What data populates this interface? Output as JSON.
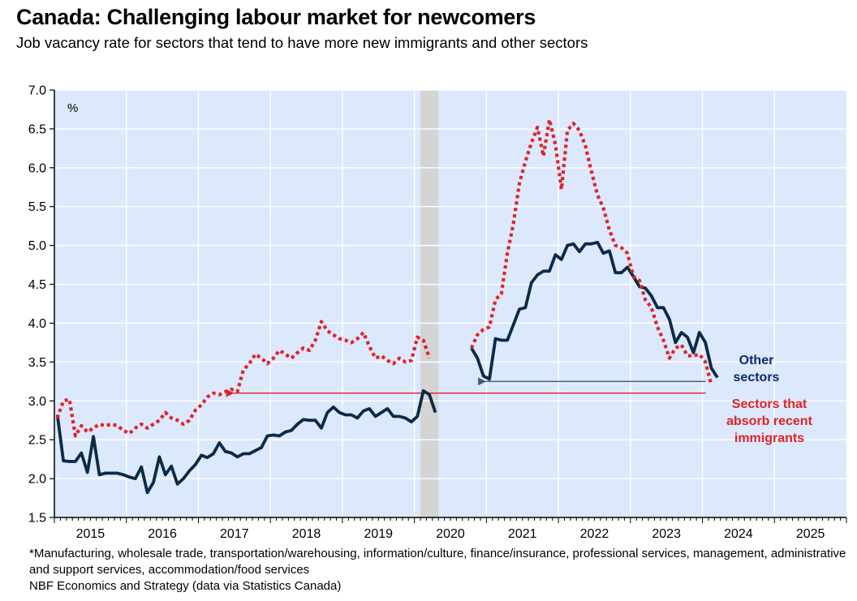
{
  "title": "Canada: Challenging labour market for newcomers",
  "subtitle": "Job vacancy rate for sectors that tend to have more new immigrants and other sectors",
  "footnote_sectors": "*Manufacturing, wholesale trade, transportation/warehousing, information/culture, finance/insurance, professional services, management, administrative and support services, accommodation/food services",
  "source": "NBF Economics and Strategy (data via Statistics Canada)",
  "colors": {
    "plot_background": "#dce8fb",
    "other_sectors": "#0b2a47",
    "immigrant_sectors": "#e02228",
    "recession": "#d4d4d4",
    "annotation_other": "#0b2a6e",
    "annotation_immigrant": "#e02228"
  },
  "chart_data": {
    "type": "line",
    "unit_label": "%",
    "xlim": [
      "2015-01",
      "2025-12"
    ],
    "ylim": [
      1.5,
      7.0
    ],
    "yticks": [
      1.5,
      2.0,
      2.5,
      3.0,
      3.5,
      4.0,
      4.5,
      5.0,
      5.5,
      6.0,
      6.5,
      7.0
    ],
    "ytick_labels": [
      "1.5",
      "2.0",
      "2.5",
      "3.0",
      "3.5",
      "4.0",
      "4.5",
      "5.0",
      "5.5",
      "6.0",
      "6.5",
      "7.0"
    ],
    "xtick_labels": [
      "2015",
      "2016",
      "2017",
      "2018",
      "2019",
      "2020",
      "2021",
      "2022",
      "2023",
      "2024",
      "2025"
    ],
    "grid": true,
    "shaded_period": {
      "start": "2020-02",
      "end": "2020-04",
      "label": ""
    },
    "series": [
      {
        "name": "Other sectors",
        "line_style": "solid",
        "segments": [
          {
            "start": "2015-01",
            "values": [
              2.82,
              2.23,
              2.22,
              2.22,
              2.33,
              2.08,
              2.54,
              2.05,
              2.07,
              2.07,
              2.07,
              2.05,
              2.02,
              2.0,
              2.15,
              1.82,
              1.95,
              2.28,
              2.05,
              2.16,
              1.93,
              2.0,
              2.1,
              2.18,
              2.3,
              2.27,
              2.32,
              2.46,
              2.35,
              2.33,
              2.28,
              2.32,
              2.32,
              2.36,
              2.4,
              2.55,
              2.56,
              2.55,
              2.6,
              2.62,
              2.7,
              2.76,
              2.75,
              2.75,
              2.65,
              2.85,
              2.92,
              2.85,
              2.82,
              2.82,
              2.78,
              2.87,
              2.9,
              2.8,
              2.85,
              2.9,
              2.8,
              2.8,
              2.78,
              2.73,
              2.8,
              3.13,
              3.08,
              2.85
            ]
          },
          {
            "start": "2020-10",
            "values": [
              3.68,
              3.55,
              3.32,
              3.28,
              3.8,
              3.78,
              3.78,
              3.98,
              4.18,
              4.2,
              4.52,
              4.62,
              4.67,
              4.67,
              4.88,
              4.82,
              5.0,
              5.02,
              4.92,
              5.02,
              5.02,
              5.04,
              4.9,
              4.93,
              4.65,
              4.65,
              4.72,
              4.6,
              4.47,
              4.45,
              4.35,
              4.2,
              4.2,
              4.05,
              3.75,
              3.88,
              3.82,
              3.62,
              3.88,
              3.75,
              3.42,
              3.3
            ]
          }
        ]
      },
      {
        "name": "Sectors that absorb recent immigrants",
        "line_style": "dotted",
        "segments": [
          {
            "start": "2015-01",
            "values": [
              2.78,
              3.0,
              3.02,
              2.55,
              2.68,
              2.6,
              2.65,
              2.7,
              2.68,
              2.7,
              2.68,
              2.62,
              2.58,
              2.65,
              2.7,
              2.65,
              2.7,
              2.75,
              2.85,
              2.78,
              2.75,
              2.7,
              2.75,
              2.88,
              2.95,
              3.05,
              3.1,
              3.08,
              3.12,
              3.15,
              3.12,
              3.4,
              3.48,
              3.6,
              3.55,
              3.48,
              3.55,
              3.65,
              3.6,
              3.55,
              3.62,
              3.68,
              3.65,
              3.78,
              4.02,
              3.9,
              3.85,
              3.8,
              3.78,
              3.75,
              3.8,
              3.88,
              3.7,
              3.55,
              3.58,
              3.52,
              3.48,
              3.55,
              3.5,
              3.52,
              3.82,
              3.78,
              3.55
            ]
          },
          {
            "start": "2020-10",
            "values": [
              3.68,
              3.85,
              3.92,
              3.95,
              4.3,
              4.38,
              4.9,
              5.28,
              5.8,
              6.08,
              6.32,
              6.52,
              6.15,
              6.62,
              6.3,
              5.72,
              6.48,
              6.57,
              6.48,
              6.28,
              5.95,
              5.65,
              5.48,
              5.2,
              5.0,
              4.97,
              4.9,
              4.6,
              4.55,
              4.3,
              4.2,
              3.95,
              3.78,
              3.55,
              3.68,
              3.72,
              3.58,
              3.58,
              3.6,
              3.5,
              3.2
            ]
          }
        ]
      }
    ],
    "reference_lines": [
      {
        "series": "Other sectors",
        "value": 3.25,
        "from": "2020-12",
        "to": "2024-01"
      },
      {
        "series": "Sectors that absorb recent immigrants",
        "value": 3.1,
        "from": "2017-06",
        "to": "2024-01"
      }
    ],
    "annotations": [
      {
        "series": "Other sectors",
        "lines": [
          "Other",
          "sectors"
        ]
      },
      {
        "series": "Sectors that absorb recent immigrants",
        "lines": [
          "Sectors that",
          "absorb recent",
          "immigrants"
        ]
      }
    ]
  }
}
